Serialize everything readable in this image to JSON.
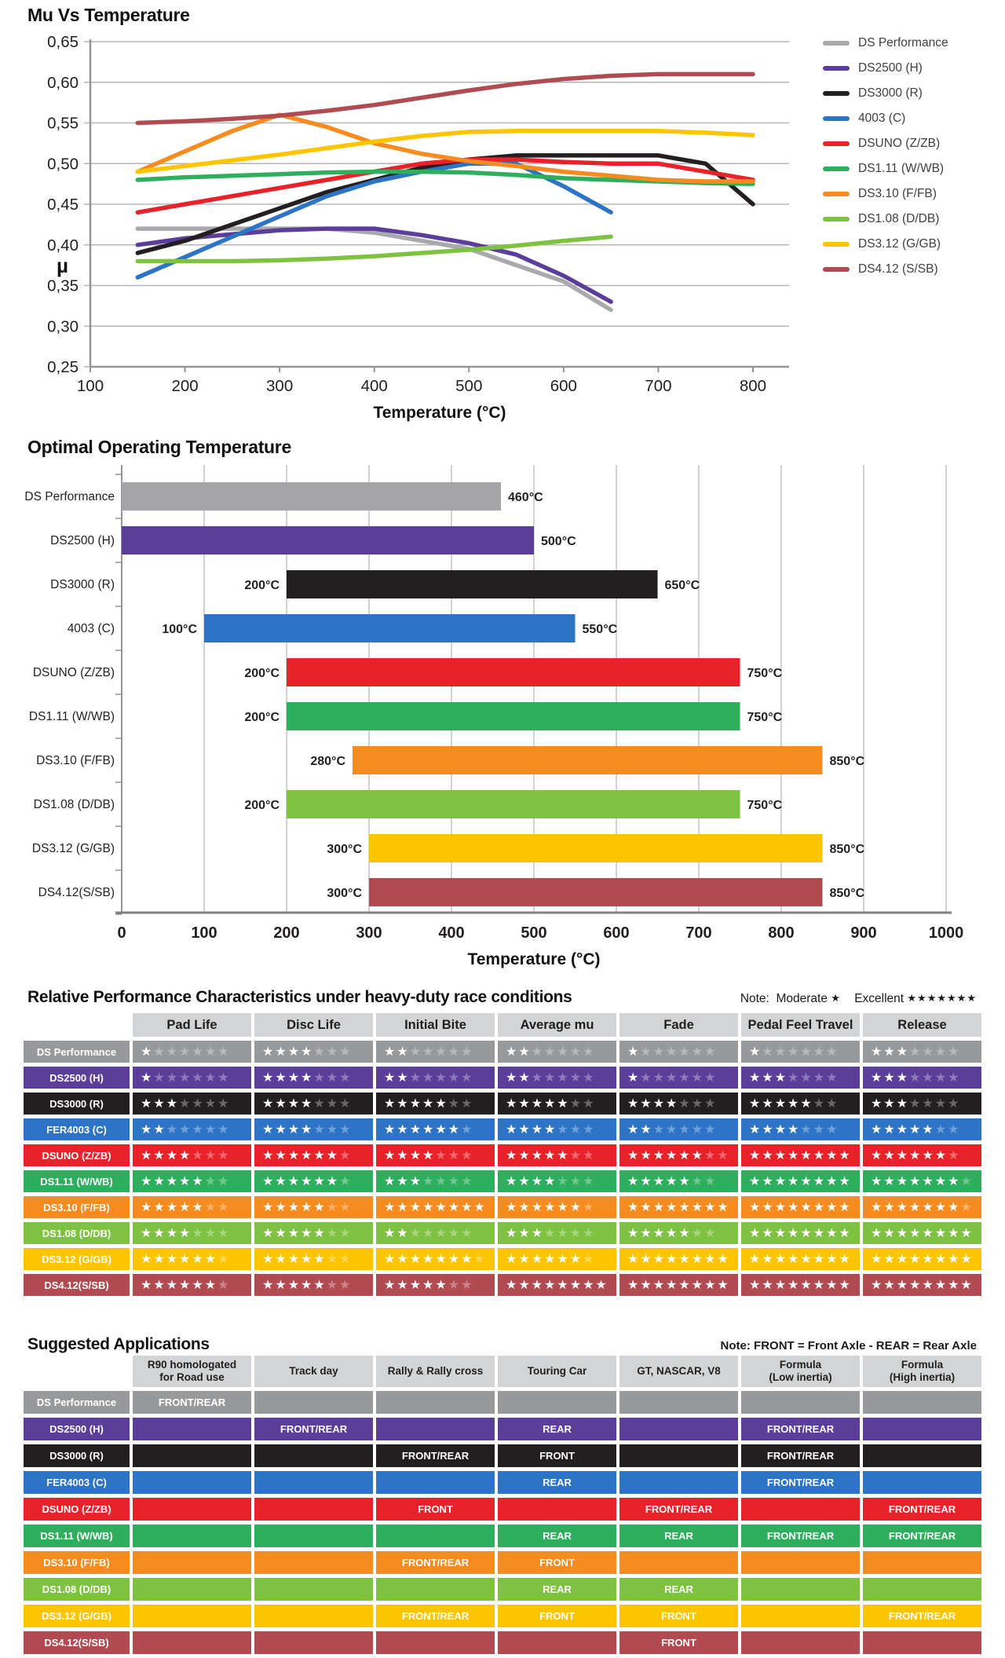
{
  "chart_data": [
    {
      "id": "mu_vs_temperature",
      "type": "line",
      "title": "Mu Vs Temperature",
      "xlabel": "Temperature (°C)",
      "ylabel": "µ",
      "xlim": [
        100,
        840
      ],
      "ylim": [
        0.25,
        0.65
      ],
      "grid": "horizontal",
      "legend_position": "right",
      "xticks": [
        100,
        200,
        300,
        400,
        500,
        600,
        700,
        800
      ],
      "yticks": [
        0.65,
        0.6,
        0.55,
        0.5,
        0.45,
        0.4,
        0.35,
        0.3,
        0.25
      ],
      "ytick_labels": [
        "0,65",
        "0,60",
        "0,55",
        "0,50",
        "0,45",
        "0,40",
        "0,35",
        "0,30",
        "0,25"
      ],
      "series": [
        {
          "name": "DS Performance",
          "color": "#a7a9ac",
          "x": [
            150,
            200,
            250,
            300,
            350,
            400,
            450,
            500,
            550,
            600,
            650
          ],
          "y": [
            0.42,
            0.42,
            0.42,
            0.42,
            0.42,
            0.415,
            0.405,
            0.395,
            0.375,
            0.355,
            0.32
          ]
        },
        {
          "name": "DS2500 (H)",
          "color": "#5b3d9a",
          "x": [
            150,
            200,
            250,
            300,
            350,
            400,
            450,
            500,
            550,
            600,
            650
          ],
          "y": [
            0.4,
            0.408,
            0.413,
            0.418,
            0.42,
            0.42,
            0.412,
            0.402,
            0.388,
            0.362,
            0.33
          ]
        },
        {
          "name": "DS3000 (R)",
          "color": "#231f20",
          "x": [
            150,
            200,
            250,
            300,
            350,
            400,
            450,
            500,
            550,
            600,
            650,
            700,
            750,
            800
          ],
          "y": [
            0.39,
            0.405,
            0.425,
            0.445,
            0.465,
            0.48,
            0.495,
            0.505,
            0.51,
            0.51,
            0.51,
            0.51,
            0.5,
            0.45
          ]
        },
        {
          "name": "4003 (C)",
          "color": "#2d74c6",
          "x": [
            150,
            200,
            250,
            300,
            350,
            400,
            450,
            500,
            550,
            600,
            650
          ],
          "y": [
            0.36,
            0.385,
            0.41,
            0.435,
            0.46,
            0.478,
            0.49,
            0.5,
            0.5,
            0.472,
            0.44
          ]
        },
        {
          "name": "DSUNO (Z/ZB)",
          "color": "#e8222a",
          "x": [
            150,
            200,
            250,
            300,
            350,
            400,
            450,
            500,
            550,
            600,
            650,
            700,
            750,
            800
          ],
          "y": [
            0.44,
            0.45,
            0.46,
            0.47,
            0.48,
            0.49,
            0.5,
            0.505,
            0.505,
            0.502,
            0.5,
            0.5,
            0.49,
            0.48
          ]
        },
        {
          "name": "DS1.11 (W/WB)",
          "color": "#2fae5e",
          "x": [
            150,
            200,
            250,
            300,
            350,
            400,
            450,
            500,
            550,
            600,
            650,
            700,
            750,
            800
          ],
          "y": [
            0.48,
            0.483,
            0.485,
            0.487,
            0.489,
            0.49,
            0.49,
            0.489,
            0.486,
            0.482,
            0.48,
            0.478,
            0.476,
            0.475
          ]
        },
        {
          "name": "DS3.10 (F/FB)",
          "color": "#f68b1f",
          "x": [
            150,
            200,
            250,
            300,
            350,
            400,
            450,
            500,
            550,
            600,
            650,
            700,
            750,
            800
          ],
          "y": [
            0.49,
            0.515,
            0.54,
            0.56,
            0.545,
            0.525,
            0.512,
            0.503,
            0.497,
            0.49,
            0.485,
            0.48,
            0.478,
            0.478
          ]
        },
        {
          "name": "DS1.08 (D/DB)",
          "color": "#7fc241",
          "x": [
            150,
            200,
            250,
            300,
            350,
            400,
            450,
            500,
            550,
            600,
            650
          ],
          "y": [
            0.38,
            0.38,
            0.38,
            0.381,
            0.383,
            0.386,
            0.39,
            0.394,
            0.399,
            0.405,
            0.41
          ]
        },
        {
          "name": "DS3.12 (G/GB)",
          "color": "#fdc500",
          "x": [
            150,
            200,
            250,
            300,
            350,
            400,
            450,
            500,
            550,
            600,
            650,
            700,
            750,
            800
          ],
          "y": [
            0.49,
            0.497,
            0.504,
            0.511,
            0.519,
            0.527,
            0.534,
            0.539,
            0.54,
            0.54,
            0.54,
            0.54,
            0.538,
            0.535
          ]
        },
        {
          "name": "DS4.12 (S/SB)",
          "color": "#b14b52",
          "x": [
            150,
            200,
            250,
            300,
            350,
            400,
            450,
            500,
            550,
            600,
            650,
            700,
            750,
            800
          ],
          "y": [
            0.55,
            0.552,
            0.555,
            0.559,
            0.565,
            0.572,
            0.581,
            0.59,
            0.598,
            0.604,
            0.608,
            0.61,
            0.61,
            0.61
          ]
        }
      ]
    },
    {
      "id": "optimal_operating_temperature",
      "type": "bar",
      "title": "Optimal Operating Temperature",
      "xlabel": "Temperature (°C)",
      "xlim": [
        0,
        1000
      ],
      "grid": "vertical",
      "xticks": [
        0,
        100,
        200,
        300,
        400,
        500,
        600,
        700,
        800,
        900,
        1000
      ],
      "bars": [
        {
          "name": "DS Performance",
          "color": "#a5a5a7",
          "start": 0,
          "end": 460,
          "start_label": "",
          "end_label": "460°C"
        },
        {
          "name": "DS2500 (H)",
          "color": "#5b3d9a",
          "start": 0,
          "end": 500,
          "start_label": "",
          "end_label": "500°C"
        },
        {
          "name": "DS3000 (R)",
          "color": "#231f20",
          "start": 200,
          "end": 650,
          "start_label": "200°C",
          "end_label": "650°C"
        },
        {
          "name": "4003 (C)",
          "color": "#2d74c6",
          "start": 100,
          "end": 550,
          "start_label": "100°C",
          "end_label": "550°C"
        },
        {
          "name": "DSUNO (Z/ZB)",
          "color": "#e8222a",
          "start": 200,
          "end": 750,
          "start_label": "200°C",
          "end_label": "750°C"
        },
        {
          "name": "DS1.11 (W/WB)",
          "color": "#2fae5e",
          "start": 200,
          "end": 750,
          "start_label": "200°C",
          "end_label": "750°C"
        },
        {
          "name": "DS3.10 (F/FB)",
          "color": "#f68b1f",
          "start": 280,
          "end": 850,
          "start_label": "280°C",
          "end_label": "850°C"
        },
        {
          "name": "DS1.08 (D/DB)",
          "color": "#7fc241",
          "start": 200,
          "end": 750,
          "start_label": "200°C",
          "end_label": "750°C"
        },
        {
          "name": "DS3.12 (G/GB)",
          "color": "#fdc500",
          "start": 300,
          "end": 850,
          "start_label": "300°C",
          "end_label": "850°C"
        },
        {
          "name": "DS4.12(S/SB)",
          "color": "#b14b52",
          "start": 300,
          "end": 850,
          "start_label": "300°C",
          "end_label": "850°C"
        }
      ]
    },
    {
      "id": "relative_performance",
      "type": "table",
      "title": "Relative Performance Characteristics under heavy-duty race conditions",
      "note": {
        "prefix": "Note:",
        "moderate_label": "Moderate",
        "moderate_stars": "★",
        "excellent_label": "Excellent",
        "excellent_stars": "★★★★★★★"
      },
      "columns": [
        "Pad Life",
        "Disc Life",
        "Initial Bite",
        "Average mu",
        "Fade",
        "Pedal Feel Travel",
        "Release"
      ],
      "rows": [
        {
          "name": "DS Performance",
          "color": "#97999b",
          "filled": [
            1,
            4,
            2,
            2,
            1,
            1,
            3
          ],
          "total": [
            7,
            7,
            7,
            7,
            7,
            7,
            7
          ]
        },
        {
          "name": "DS2500 (H)",
          "color": "#5b3d9a",
          "filled": [
            1,
            4,
            2,
            2,
            1,
            3,
            3
          ],
          "total": [
            7,
            7,
            7,
            7,
            7,
            7,
            7
          ]
        },
        {
          "name": "DS3000 (R)",
          "color": "#231f20",
          "filled": [
            3,
            4,
            5,
            5,
            4,
            5,
            3
          ],
          "total": [
            7,
            7,
            7,
            7,
            7,
            7,
            7
          ]
        },
        {
          "name": "FER4003 (C)",
          "color": "#2d74c6",
          "filled": [
            2,
            4,
            6,
            4,
            2,
            4,
            5
          ],
          "total": [
            7,
            7,
            7,
            7,
            7,
            7,
            7
          ]
        },
        {
          "name": "DSUNO (Z/ZB)",
          "color": "#e8222a",
          "filled": [
            4,
            6,
            4,
            5,
            6,
            8,
            6
          ],
          "total": [
            7,
            7,
            7,
            7,
            8,
            8,
            7
          ]
        },
        {
          "name": "DS1.11 (W/WB)",
          "color": "#2fae5e",
          "filled": [
            5,
            6,
            3,
            4,
            5,
            8,
            7
          ],
          "total": [
            7,
            7,
            7,
            7,
            7,
            8,
            8
          ]
        },
        {
          "name": "DS3.10 (F/FB)",
          "color": "#f68b1f",
          "filled": [
            5,
            5,
            8,
            6,
            8,
            8,
            7
          ],
          "total": [
            7,
            7,
            8,
            7,
            8,
            8,
            8
          ]
        },
        {
          "name": "DS1.08 (D/DB)",
          "color": "#7fc241",
          "filled": [
            4,
            5,
            2,
            3,
            5,
            8,
            8
          ],
          "total": [
            7,
            7,
            7,
            7,
            7,
            8,
            8
          ]
        },
        {
          "name": "DS3.12 (G/GB)",
          "color": "#fdc500",
          "filled": [
            6,
            5,
            7,
            6,
            8,
            8,
            8
          ],
          "total": [
            7,
            7,
            8,
            7,
            8,
            8,
            8
          ]
        },
        {
          "name": "DS4.12(S/SB)",
          "color": "#b14b52",
          "filled": [
            6,
            5,
            5,
            8,
            8,
            8,
            8
          ],
          "total": [
            7,
            7,
            7,
            8,
            8,
            8,
            8
          ]
        }
      ]
    },
    {
      "id": "suggested_applications",
      "type": "table",
      "title": "Suggested Applications",
      "note": "Note: FRONT = Front Axle - REAR = Rear Axle",
      "columns": [
        "R90 homologated\nfor Road use",
        "Track day",
        "Rally & Rally cross",
        "Touring Car",
        "GT, NASCAR, V8",
        "Formula\n(Low inertia)",
        "Formula\n(High inertia)"
      ],
      "rows": [
        {
          "name": "DS Performance",
          "color": "#97999b",
          "cells": [
            "FRONT/REAR",
            "",
            "",
            "",
            "",
            "",
            ""
          ]
        },
        {
          "name": "DS2500 (H)",
          "color": "#5b3d9a",
          "cells": [
            "",
            "FRONT/REAR",
            "",
            "REAR",
            "",
            "FRONT/REAR",
            ""
          ]
        },
        {
          "name": "DS3000 (R)",
          "color": "#231f20",
          "cells": [
            "",
            "",
            "FRONT/REAR",
            "FRONT",
            "",
            "FRONT/REAR",
            ""
          ]
        },
        {
          "name": "FER4003 (C)",
          "color": "#2d74c6",
          "cells": [
            "",
            "",
            "",
            "REAR",
            "",
            "FRONT/REAR",
            ""
          ]
        },
        {
          "name": "DSUNO (Z/ZB)",
          "color": "#e8222a",
          "cells": [
            "",
            "",
            "FRONT",
            "",
            "FRONT/REAR",
            "",
            "FRONT/REAR"
          ]
        },
        {
          "name": "DS1.11 (W/WB)",
          "color": "#2fae5e",
          "cells": [
            "",
            "",
            "",
            "REAR",
            "REAR",
            "FRONT/REAR",
            "FRONT/REAR"
          ]
        },
        {
          "name": "DS3.10 (F/FB)",
          "color": "#f68b1f",
          "cells": [
            "",
            "",
            "FRONT/REAR",
            "FRONT",
            "",
            "",
            ""
          ]
        },
        {
          "name": "DS1.08 (D/DB)",
          "color": "#7fc241",
          "cells": [
            "",
            "",
            "",
            "REAR",
            "REAR",
            "",
            ""
          ]
        },
        {
          "name": "DS3.12 (G/GB)",
          "color": "#fdc500",
          "cells": [
            "",
            "",
            "FRONT/REAR",
            "FRONT",
            "FRONT",
            "",
            "FRONT/REAR"
          ]
        },
        {
          "name": "DS4.12(S/SB)",
          "color": "#b14b52",
          "cells": [
            "",
            "",
            "",
            "",
            "FRONT",
            "",
            ""
          ]
        }
      ]
    }
  ]
}
